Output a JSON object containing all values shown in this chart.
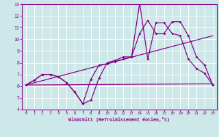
{
  "xlabel": "Windchill (Refroidissement éolien,°C)",
  "xlim": [
    -0.5,
    23.5
  ],
  "ylim": [
    4,
    13
  ],
  "yticks": [
    4,
    5,
    6,
    7,
    8,
    9,
    10,
    11,
    12,
    13
  ],
  "xticks": [
    0,
    1,
    2,
    3,
    4,
    5,
    6,
    7,
    8,
    9,
    10,
    11,
    12,
    13,
    14,
    15,
    16,
    17,
    18,
    19,
    20,
    21,
    22,
    23
  ],
  "bg_color": "#cce8e8",
  "line_color": "#880088",
  "grid_color": "#aacccc",
  "line1_x": [
    0,
    1,
    2,
    3,
    4,
    5,
    6,
    7,
    8,
    9,
    10,
    11,
    12,
    13,
    14,
    15,
    16,
    17,
    18,
    19,
    20,
    21,
    22,
    23
  ],
  "line1_y": [
    6.1,
    6.5,
    7.0,
    7.0,
    6.8,
    6.3,
    5.5,
    4.5,
    4.8,
    6.7,
    8.0,
    8.2,
    8.5,
    8.5,
    10.5,
    11.6,
    10.5,
    10.5,
    11.5,
    11.5,
    10.3,
    8.5,
    7.8,
    6.1
  ],
  "line2_x": [
    0,
    1,
    2,
    3,
    4,
    5,
    6,
    7,
    8,
    9,
    10,
    11,
    12,
    13,
    14,
    15,
    16,
    17,
    18,
    19,
    20,
    21,
    22,
    23
  ],
  "line2_y": [
    6.1,
    6.5,
    7.0,
    7.0,
    6.8,
    6.3,
    5.5,
    4.5,
    6.6,
    7.8,
    7.9,
    8.1,
    8.3,
    8.5,
    13.1,
    8.3,
    11.4,
    11.4,
    10.5,
    10.3,
    8.3,
    7.5,
    7.1,
    6.1
  ],
  "line3_x": [
    0,
    23
  ],
  "line3_y": [
    6.1,
    10.3
  ],
  "line4_x": [
    0,
    23
  ],
  "line4_y": [
    6.1,
    6.2
  ]
}
